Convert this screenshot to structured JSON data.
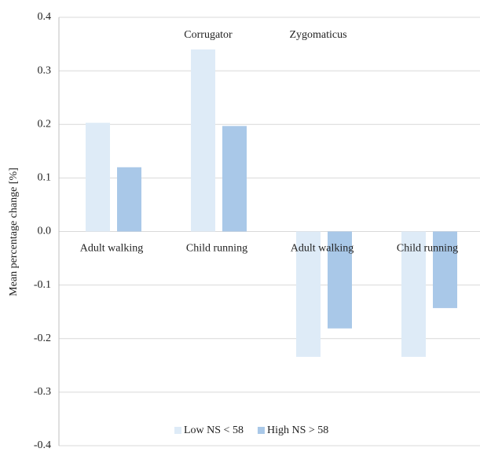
{
  "chart_data": {
    "type": "bar",
    "y_label": "Mean percentage change [%]",
    "annotations": [
      "Corrugator",
      "Zygomaticus"
    ],
    "categories": [
      "Adult walking",
      "Child running",
      "Adult walking",
      "Child running"
    ],
    "series": [
      {
        "name": "Low NS < 58",
        "color": "#deebf7",
        "values": [
          0.203,
          0.34,
          -0.234,
          -0.234
        ]
      },
      {
        "name": "High NS > 58",
        "color": "#a9c8e8",
        "values": [
          0.12,
          0.197,
          -0.181,
          -0.143
        ]
      }
    ],
    "ylim": [
      -0.4,
      0.4
    ],
    "yticks": [
      -0.4,
      -0.3,
      -0.2,
      -0.1,
      {
        "value": 0,
        "label": "0.0"
      },
      0.1,
      0.2,
      0.3,
      0.4
    ],
    "grid": true
  }
}
